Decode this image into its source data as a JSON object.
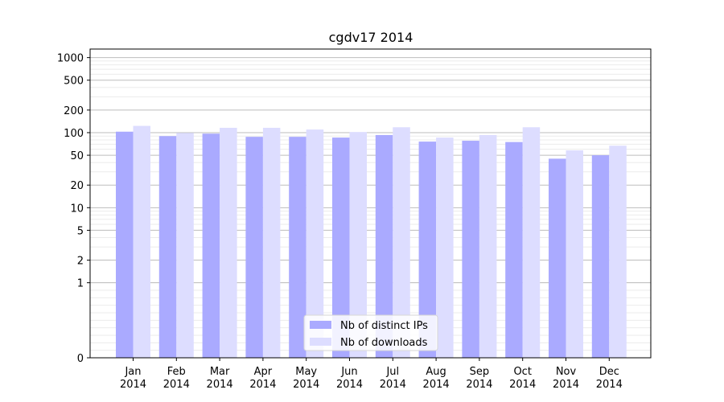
{
  "chart_data": {
    "type": "bar",
    "title": "cgdv17 2014",
    "xlabel": "",
    "ylabel": "",
    "y_scale": "symlog",
    "ylim": [
      0,
      1300
    ],
    "y_ticks": [
      0,
      1,
      2,
      5,
      10,
      20,
      50,
      100,
      200,
      500,
      1000
    ],
    "y_tick_labels": [
      "0",
      "1",
      "2",
      "5",
      "10",
      "20",
      "50",
      "100",
      "200",
      "500",
      "1000"
    ],
    "grid": true,
    "legend_position": "bottom-center",
    "categories": [
      "Jan\n2014",
      "Feb\n2014",
      "Mar\n2014",
      "Apr\n2014",
      "May\n2014",
      "Jun\n2014",
      "Jul\n2014",
      "Aug\n2014",
      "Sep\n2014",
      "Oct\n2014",
      "Nov\n2014",
      "Dec\n2014"
    ],
    "series": [
      {
        "name": "Nb of distinct IPs",
        "color": "#aaaaff",
        "values": [
          103,
          90,
          97,
          88,
          88,
          86,
          93,
          76,
          78,
          75,
          45,
          50
        ]
      },
      {
        "name": "Nb of downloads",
        "color": "#ddddff",
        "values": [
          123,
          99,
          116,
          116,
          110,
          102,
          118,
          86,
          93,
          118,
          58,
          67
        ]
      }
    ]
  }
}
